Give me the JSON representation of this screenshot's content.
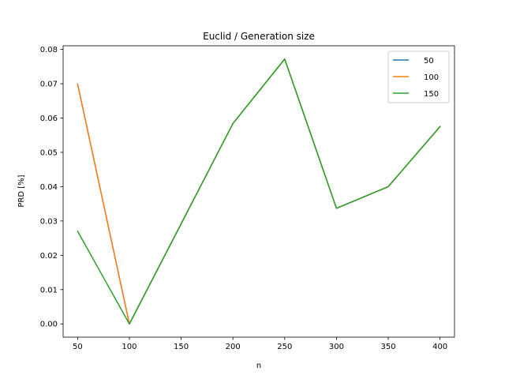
{
  "chart_data": {
    "type": "line",
    "title": "Euclid / Generation size",
    "xlabel": "n",
    "ylabel": "PRD [%]",
    "x": [
      50,
      100,
      150,
      200,
      250,
      300,
      350,
      400
    ],
    "xlim": [
      36,
      414
    ],
    "ylim": [
      -0.00386,
      0.08106
    ],
    "xticks": [
      50,
      100,
      150,
      200,
      250,
      300,
      350,
      400
    ],
    "xtick_labels": [
      "50",
      "100",
      "150",
      "200",
      "250",
      "300",
      "350",
      "400"
    ],
    "yticks": [
      0.0,
      0.01,
      0.02,
      0.03,
      0.04,
      0.05,
      0.06,
      0.07,
      0.08
    ],
    "ytick_labels": [
      "0.00",
      "0.01",
      "0.02",
      "0.03",
      "0.04",
      "0.05",
      "0.06",
      "0.07",
      "0.08"
    ],
    "grid": false,
    "legend_position": "top-right",
    "series": [
      {
        "name": "50",
        "color": "#1f77b4",
        "values": [
          0.0699,
          0.0,
          0.0292,
          0.0584,
          0.0772,
          0.0337,
          0.04,
          0.0575
        ]
      },
      {
        "name": "100",
        "color": "#ff7f0e",
        "values": [
          0.0699,
          0.0,
          0.0292,
          0.0584,
          0.0772,
          0.0337,
          0.04,
          0.0575
        ]
      },
      {
        "name": "150",
        "color": "#2ca02c",
        "values": [
          0.027,
          0.0,
          0.0292,
          0.0584,
          0.0772,
          0.0337,
          0.04,
          0.0575
        ]
      }
    ]
  }
}
